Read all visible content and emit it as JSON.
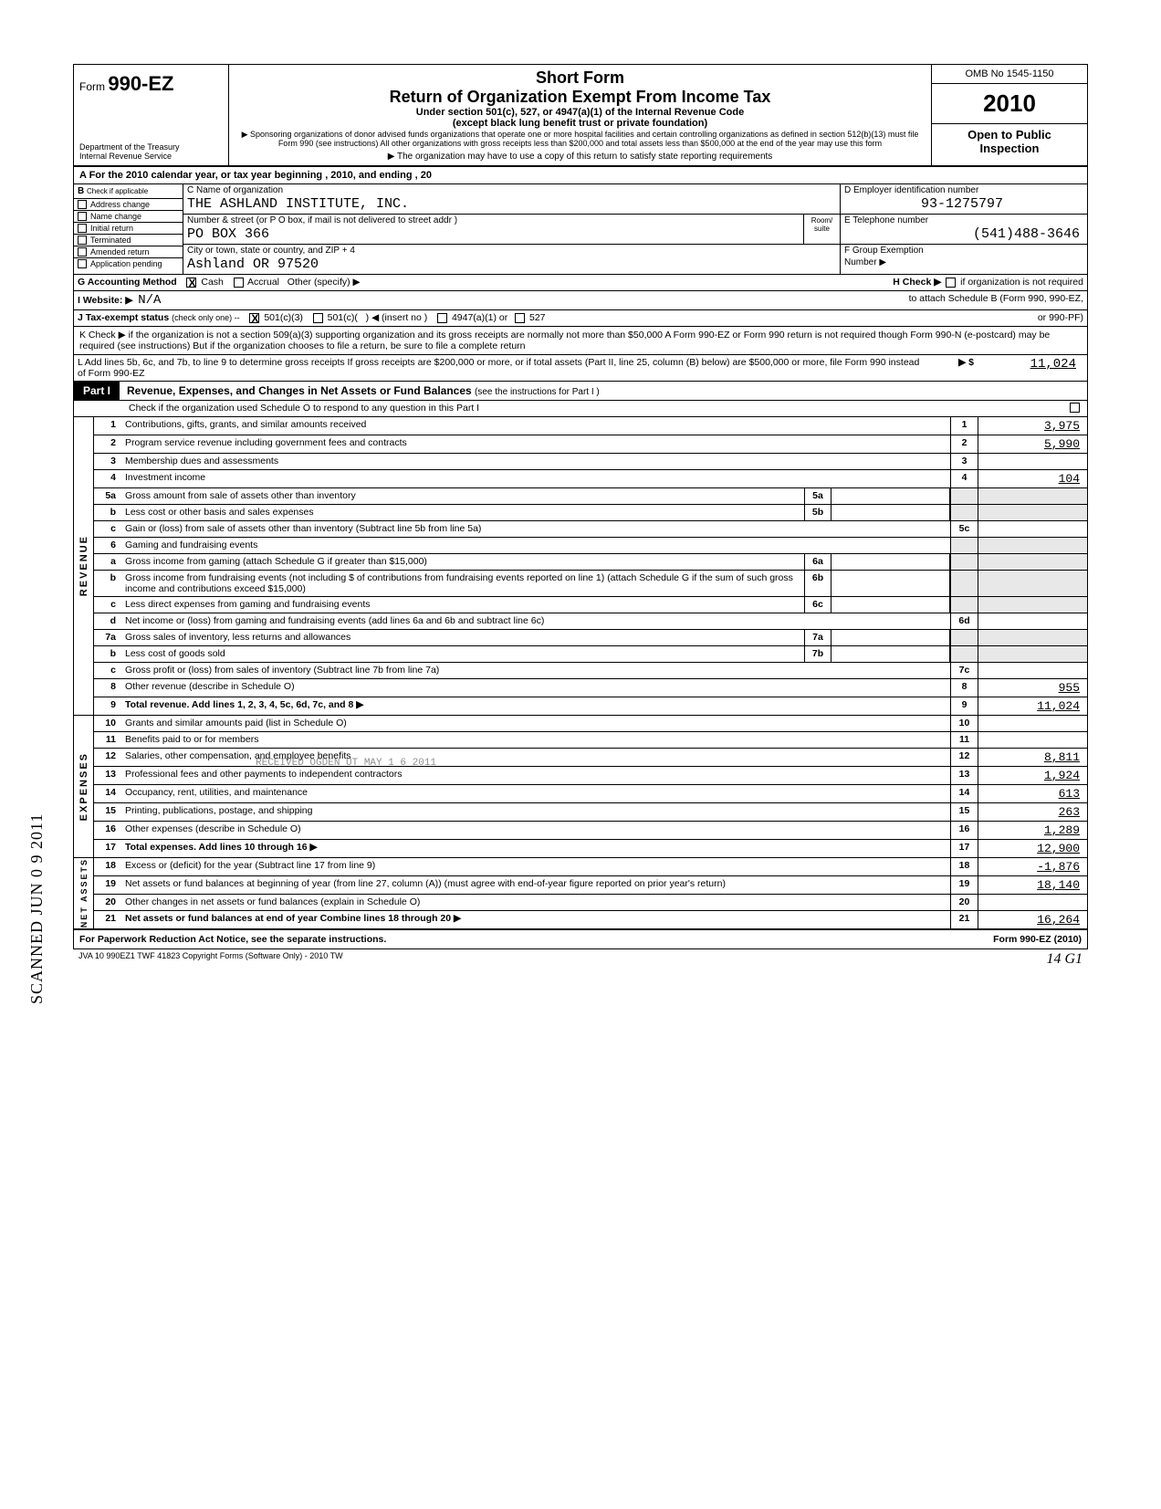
{
  "header": {
    "form_prefix": "Form",
    "form_number": "990-EZ",
    "dept1": "Department of the Treasury",
    "dept2": "Internal Revenue Service",
    "short": "Short Form",
    "title": "Return of Organization Exempt From Income Tax",
    "subtitle": "Under section 501(c), 527, or 4947(a)(1) of the Internal Revenue Code",
    "paren": "(except black lung benefit trust or private foundation)",
    "sponsor": "▶ Sponsoring organizations of donor advised funds organizations that operate one or more hospital facilities and certain controlling organizations as defined in section 512(b)(13) must file Form 990 (see instructions) All other organizations with gross receipts less than $200,000 and total assets less than $500,000 at the end of the year may use this form",
    "note": "▶ The organization may have to use a copy of this return to satisfy state reporting requirements",
    "omb": "OMB No 1545-1150",
    "year": "2010",
    "open1": "Open to Public",
    "open2": "Inspection"
  },
  "sectionA": "A  For the 2010 calendar year, or tax year beginning                                                              , 2010, and ending                                                   , 20",
  "colB": {
    "header": "B",
    "sub": "Check if applicable",
    "items": [
      "Address change",
      "Name change",
      "Initial return",
      "Terminated",
      "Amended return",
      "Application pending"
    ]
  },
  "colC": {
    "name_lbl": "C  Name of organization",
    "name_val": "THE ASHLAND INSTITUTE, INC.",
    "addr_lbl": "Number & street (or P O  box, if mail is not delivered to street addr )",
    "room_lbl": "Room/\nsuite",
    "addr_val": "PO BOX 366",
    "city_lbl": "City or town, state or country, and ZIP + 4",
    "city_val": "Ashland OR 97520"
  },
  "colD": {
    "ein_lbl": "D   Employer identification number",
    "ein_val": "93-1275797",
    "tel_lbl": "E   Telephone number",
    "tel_val": "(541)488-3646",
    "grp_lbl": "F   Group Exemption",
    "grp_lbl2": "Number          ▶"
  },
  "lineG": {
    "label": "G  Accounting Method",
    "cash": "Cash",
    "accrual": "Accrual",
    "other": "Other (specify) ▶",
    "h": "H   Check ▶",
    "h2": "if organization is not required"
  },
  "lineI": {
    "label": "I   Website: ▶",
    "val": "N/A",
    "h2": "to attach Schedule B (Form 990, 990-EZ,"
  },
  "lineJ": {
    "label": "J   Tax-exempt status",
    "note": "(check only one) --",
    "c3": "501(c)(3)",
    "c": "501(c)(",
    "insert": ") ◀ (insert no )",
    "a1": "4947(a)(1) or",
    "s527": "527",
    "h3": "or 990-PF)"
  },
  "lineK": "K  Check ▶         if the organization is not a section 509(a)(3) supporting organization and its gross receipts are normally not more than $50,000  A Form 990-EZ or Form 990 return is not required though Form 990-N (e-postcard) may be required (see instructions)  But if the organization chooses to file a return, be sure to file a complete return",
  "lineL": {
    "text": "L  Add lines 5b, 6c, and 7b, to line 9 to determine gross receipts  If gross receipts are $200,000 or more, or if total assets (Part II, line 25, column (B) below) are $500,000 or more, file Form 990 instead of Form 990-EZ",
    "arrow": "▶  $",
    "val": "11,024"
  },
  "part1": {
    "label": "Part I",
    "title": "Revenue, Expenses, and Changes in Net Assets or Fund Balances",
    "note": "(see the instructions for Part I )",
    "check": "Check if the organization used Schedule O to respond to any question in this Part I"
  },
  "revenue": {
    "side": "REVENUE",
    "lines": [
      {
        "n": "1",
        "d": "Contributions, gifts, grants, and similar amounts received",
        "ref": "1",
        "v": "3,975"
      },
      {
        "n": "2",
        "d": "Program service revenue including government fees and contracts",
        "ref": "2",
        "v": "5,990"
      },
      {
        "n": "3",
        "d": "Membership dues and assessments",
        "ref": "3",
        "v": ""
      },
      {
        "n": "4",
        "d": "Investment income",
        "ref": "4",
        "v": "104"
      },
      {
        "n": "5a",
        "d": "Gross amount from sale of assets other than inventory",
        "mid": "5a",
        "midv": ""
      },
      {
        "n": "b",
        "d": "Less  cost or other basis and sales expenses",
        "mid": "5b",
        "midv": ""
      },
      {
        "n": "c",
        "d": "Gain or (loss) from sale of assets other than inventory (Subtract line 5b from line 5a)",
        "ref": "5c",
        "v": ""
      },
      {
        "n": "6",
        "d": "Gaming and fundraising events"
      },
      {
        "n": "a",
        "d": "Gross income from gaming (attach Schedule G if greater than $15,000)",
        "mid": "6a",
        "midv": ""
      },
      {
        "n": "b",
        "d": "Gross income from fundraising events (not including $                                           of contributions from fundraising events reported on line 1) (attach Schedule G if the sum of such gross income and contributions exceed $15,000)",
        "mid": "6b",
        "midv": ""
      },
      {
        "n": "c",
        "d": "Less  direct expenses from gaming and fundraising events",
        "mid": "6c",
        "midv": ""
      },
      {
        "n": "d",
        "d": "Net income or (loss) from gaming and fundraising events (add lines 6a and 6b and subtract line 6c)",
        "ref": "6d",
        "v": ""
      },
      {
        "n": "7a",
        "d": "Gross sales of inventory, less returns and allowances",
        "mid": "7a",
        "midv": ""
      },
      {
        "n": "b",
        "d": "Less  cost of goods sold",
        "mid": "7b",
        "midv": ""
      },
      {
        "n": "c",
        "d": "Gross profit or (loss) from sales of inventory (Subtract line 7b from line 7a)",
        "ref": "7c",
        "v": ""
      },
      {
        "n": "8",
        "d": "Other revenue (describe in Schedule O)",
        "ref": "8",
        "v": "955"
      },
      {
        "n": "9",
        "d": "Total revenue. Add lines 1, 2, 3, 4, 5c, 6d, 7c, and 8                                                                                                   ▶",
        "ref": "9",
        "v": "11,024",
        "bold": true
      }
    ]
  },
  "expenses": {
    "side": "EXPENSES",
    "lines": [
      {
        "n": "10",
        "d": "Grants and similar amounts paid (list in Schedule O)",
        "ref": "10",
        "v": ""
      },
      {
        "n": "11",
        "d": "Benefits paid to or for members",
        "ref": "11",
        "v": ""
      },
      {
        "n": "12",
        "d": "Salaries, other compensation, and employee benefits",
        "ref": "12",
        "v": "8,811"
      },
      {
        "n": "13",
        "d": "Professional fees and other payments to independent contractors",
        "ref": "13",
        "v": "1,924"
      },
      {
        "n": "14",
        "d": "Occupancy, rent, utilities, and maintenance",
        "ref": "14",
        "v": "613"
      },
      {
        "n": "15",
        "d": "Printing, publications, postage, and shipping",
        "ref": "15",
        "v": "263"
      },
      {
        "n": "16",
        "d": "Other expenses (describe in Schedule O)",
        "ref": "16",
        "v": "1,289"
      },
      {
        "n": "17",
        "d": "Total expenses. Add lines 10 through 16                                                                                                                  ▶",
        "ref": "17",
        "v": "12,900",
        "bold": true
      }
    ]
  },
  "assets": {
    "side": "NET ASSETS",
    "lines": [
      {
        "n": "18",
        "d": "Excess or (deficit) for the year (Subtract line 17 from line 9)",
        "ref": "18",
        "v": "-1,876"
      },
      {
        "n": "19",
        "d": "Net assets or fund balances at beginning of year (from line 27, column (A)) (must agree with end-of-year figure reported on prior year's return)",
        "ref": "19",
        "v": "18,140"
      },
      {
        "n": "20",
        "d": "Other changes in net assets or fund balances (explain in Schedule O)",
        "ref": "20",
        "v": ""
      },
      {
        "n": "21",
        "d": "Net assets or fund balances at end of year  Combine lines 18 through 20                                                               ▶",
        "ref": "21",
        "v": "16,264",
        "bold": true
      }
    ]
  },
  "footer": {
    "left": "For Paperwork Reduction Act Notice, see the separate instructions.",
    "right": "Form 990-EZ  (2010)",
    "jva": "JVA        10  990EZ1        TWF 41823        Copyright Forms (Software Only) - 2010 TW",
    "hand": "14 G1"
  },
  "stamp": "SCANNED JUN 0 9 2011",
  "watermark": "RECEIVED\nOGDEN UT\nMAY 1 6 2011"
}
